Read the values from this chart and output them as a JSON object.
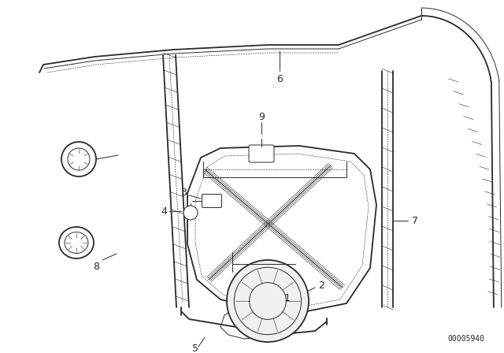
{
  "bg_color": "#ffffff",
  "lc": "#2a2a2a",
  "diagram_id": "00005940",
  "label_fs": 9,
  "id_fs": 7,
  "figsize": [
    6.4,
    4.48
  ],
  "dpi": 100
}
